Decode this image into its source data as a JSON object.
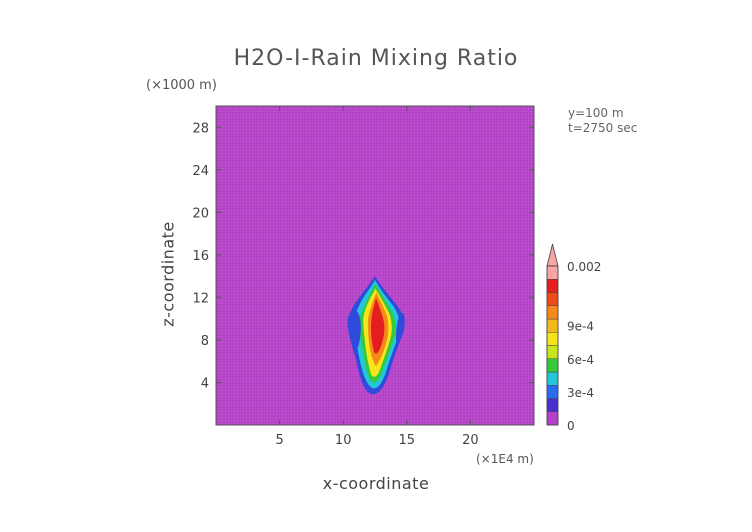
{
  "chart_data": {
    "type": "heatmap",
    "title": "H2O-I-Rain Mixing Ratio",
    "xlabel": "x-coordinate",
    "ylabel": "z-coordinate",
    "x_unit": "(×1E4 m)",
    "y_unit": "(×1000 m)",
    "x_ticks": [
      5,
      10,
      15,
      20
    ],
    "y_ticks": [
      4,
      8,
      12,
      16,
      20,
      24,
      28
    ],
    "xlim": [
      0,
      25
    ],
    "ylim": [
      0,
      30
    ],
    "annotations": [
      "y=100 m",
      "t=2750 sec"
    ],
    "background_value": 0,
    "colorbar": {
      "labels": [
        "0",
        "3e-4",
        "6e-4",
        "9e-4",
        "0.002"
      ],
      "label_values": [
        0,
        0.0003,
        0.0006,
        0.0009,
        0.002
      ],
      "colors": [
        "#b43fc8",
        "#4a2fd0",
        "#2a6cf0",
        "#23c8d8",
        "#36c93a",
        "#c8e61c",
        "#f5e51a",
        "#f5b81a",
        "#f58a1a",
        "#ef4a1a",
        "#e41e1e",
        "#f7a4a4"
      ],
      "extend": "max"
    },
    "field_core": {
      "x_center": 12.2,
      "z_center": 9.2,
      "z_min": 2.8,
      "z_max": 14.0,
      "x_min": 10.0,
      "x_max": 14.8
    }
  }
}
